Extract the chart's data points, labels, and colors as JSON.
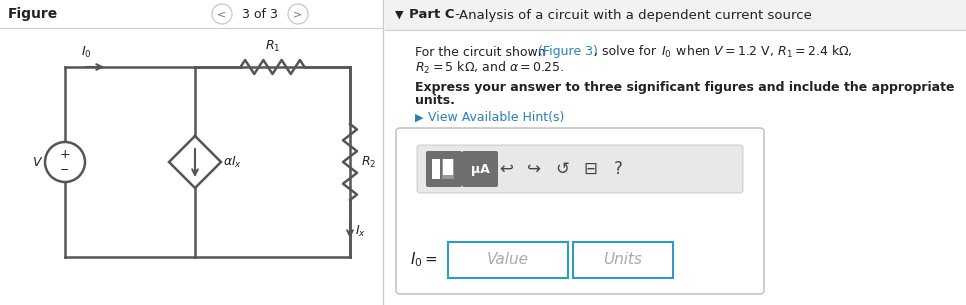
{
  "white": "#ffffff",
  "black": "#000000",
  "gray_light": "#e8e8e8",
  "gray_mid": "#cccccc",
  "gray_dark": "#777777",
  "gray_btn": "#888888",
  "blue_link": "#2980b9",
  "blue_border": "#2e9bbf",
  "text_dark": "#222222",
  "divider_color": "#cccccc",
  "header_bg": "#f0f0f0",
  "panel_bg": "#f8f8f8",
  "toolbar_bg": "#e0e0e0",
  "figure_label": "Figure",
  "nav_text": "3 of 3",
  "part_label": "Part C",
  "part_dash": " - ",
  "part_desc": "Analysis of a circuit with a dependent current source",
  "body_prefix": "For the circuit shown ",
  "body_link": "(Figure 3)",
  "body_mid": ", solve for ",
  "body_suffix": " when ",
  "body_math": "V = 1.2 V,  R₁ = 2.4 kΩ,",
  "body_line2": "R₂ = 5 kΩ, and α = 0.25.",
  "bold_line1": "Express your answer to three significant figures and include the appropriate",
  "bold_line2": "units.",
  "hint_text": "View Available Hint(s)",
  "io_label": "I₀ =",
  "value_placeholder": "Value",
  "units_placeholder": "Units",
  "mu_a_text": "μA",
  "wire_color": "#555555",
  "wire_lw": 1.8
}
